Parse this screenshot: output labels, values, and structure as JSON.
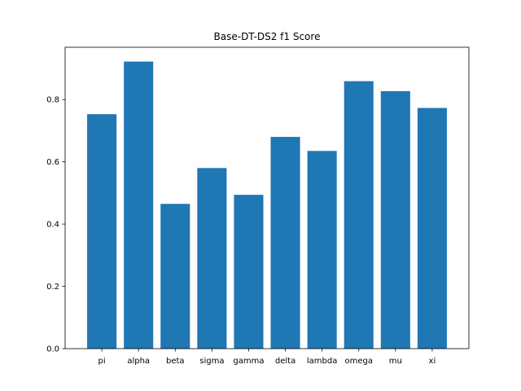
{
  "chart_data": {
    "type": "bar",
    "title": "Base-DT-DS2 f1 Score",
    "xlabel": "",
    "ylabel": "",
    "categories": [
      "pi",
      "alpha",
      "beta",
      "sigma",
      "gamma",
      "delta",
      "lambda",
      "omega",
      "mu",
      "xi"
    ],
    "values": [
      0.753,
      0.922,
      0.465,
      0.58,
      0.494,
      0.68,
      0.635,
      0.859,
      0.827,
      0.773
    ],
    "ylim": [
      0,
      0.968
    ],
    "yticks": [
      0.0,
      0.2,
      0.4,
      0.6,
      0.8
    ],
    "ytick_labels": [
      "0.0",
      "0.2",
      "0.4",
      "0.6",
      "0.8"
    ],
    "grid": false,
    "legend": "none",
    "bar_color": "#1f77b4"
  }
}
